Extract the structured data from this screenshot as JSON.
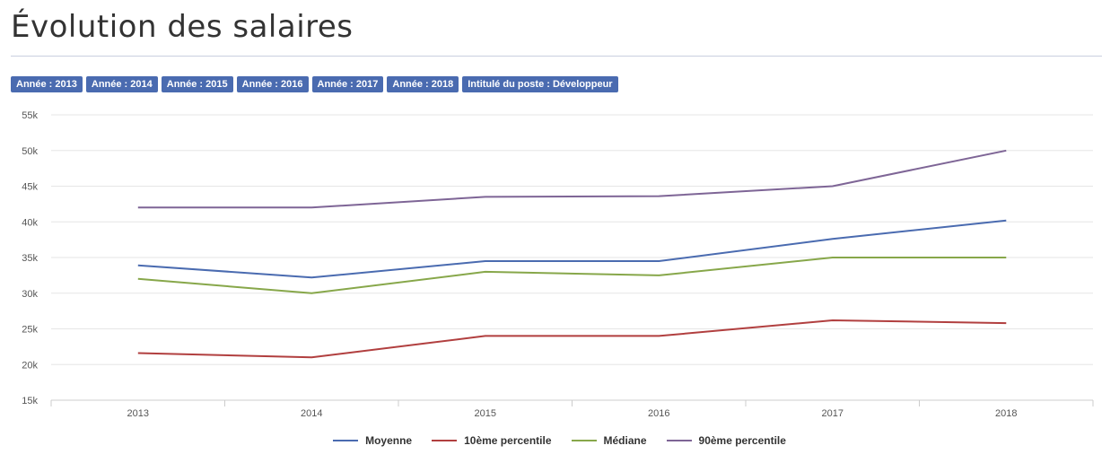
{
  "page": {
    "title": "Évolution des salaires"
  },
  "filters": [
    "Année : 2013",
    "Année : 2014",
    "Année : 2015",
    "Année : 2016",
    "Année : 2017",
    "Année : 2018",
    "Intitulé du poste : Développeur"
  ],
  "chart_data": {
    "type": "line",
    "title": "",
    "xlabel": "",
    "ylabel": "",
    "categories": [
      "2013",
      "2014",
      "2015",
      "2016",
      "2017",
      "2018"
    ],
    "ylim": [
      15000,
      55000
    ],
    "yticks": [
      15000,
      20000,
      25000,
      30000,
      35000,
      40000,
      45000,
      50000,
      55000
    ],
    "ytick_labels": [
      "15k",
      "20k",
      "25k",
      "30k",
      "35k",
      "40k",
      "45k",
      "50k",
      "55k"
    ],
    "grid": true,
    "legend_position": "bottom",
    "series": [
      {
        "name": "Moyenne",
        "color": "#4a6bb0",
        "values": [
          33900,
          32200,
          34500,
          34500,
          37600,
          40200
        ]
      },
      {
        "name": "10ème percentile",
        "color": "#b13f3f",
        "values": [
          21600,
          21000,
          24000,
          24000,
          26200,
          25800
        ]
      },
      {
        "name": "Médiane",
        "color": "#87a74a",
        "values": [
          32000,
          30000,
          33000,
          32500,
          35000,
          35000
        ]
      },
      {
        "name": "90ème percentile",
        "color": "#7e6596",
        "values": [
          42000,
          42000,
          43500,
          43600,
          45000,
          50000
        ]
      }
    ]
  }
}
